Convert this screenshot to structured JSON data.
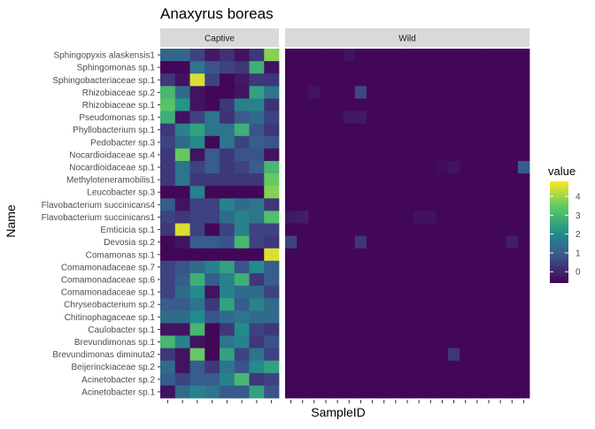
{
  "chart_data": {
    "type": "heatmap",
    "title": "Anaxyrus boreas",
    "xlabel": "SampleID",
    "ylabel": "Name",
    "facets": [
      {
        "label": "Captive",
        "n_samples": 8
      },
      {
        "label": "Wild",
        "n_samples": 21
      }
    ],
    "rows": [
      "Sphingopyxis alaskensis1",
      "Sphingomonas sp.1",
      "Sphingobacteriaceae sp.1",
      "Rhizobiaceae sp.2",
      "Rhizobiaceae sp.1",
      "Pseudomonas sp.1",
      "Phyllobacterium sp.1",
      "Pedobacter sp.3",
      "Nocardioidaceae sp.4",
      "Nocardioidaceae sp.1",
      "Methyloteneramobilis1",
      "Leucobacter sp.3",
      "Flavobacterium succinicans4",
      "Flavobacterium succinicans1",
      "Emticicia sp.1",
      "Devosia sp.2",
      "Comamonas sp.1",
      "Comamonadaceae sp.7",
      "Comamonadaceae sp.6",
      "Comamonadaceae sp.1",
      "Chryseobacterium sp.2",
      "Chitinophagaceae sp.1",
      "Caulobacter sp.1",
      "Brevundimonas sp.1",
      "Brevundimonas diminuta2",
      "Beijerinckiaceae sp.2",
      "Acinetobacter sp.2",
      "Acinetobacter sp.1"
    ],
    "captive_values": [
      [
        1.2,
        1.2,
        0.5,
        -0.2,
        0.2,
        -0.3,
        0.3,
        3.8
      ],
      [
        -0.5,
        -0.5,
        1.5,
        0.8,
        0.5,
        0.3,
        2.8,
        -0.3
      ],
      [
        0.3,
        -0.3,
        4.5,
        0.5,
        -0.5,
        -0.2,
        0.3,
        0.3
      ],
      [
        3.0,
        1.3,
        -0.3,
        -0.5,
        -0.5,
        -0.3,
        2.5,
        1.5
      ],
      [
        3.3,
        2.2,
        -0.3,
        -0.5,
        0.3,
        1.8,
        1.8,
        0.2
      ],
      [
        2.8,
        -0.3,
        0.5,
        1.5,
        0.2,
        1.0,
        1.3,
        0.5
      ],
      [
        0.3,
        1.8,
        2.5,
        1.5,
        1.5,
        2.8,
        0.8,
        0.3
      ],
      [
        0.5,
        1.3,
        2.0,
        -0.5,
        1.5,
        0.5,
        1.0,
        0.8
      ],
      [
        0.3,
        3.5,
        -0.3,
        1.0,
        0.3,
        0.8,
        0.8,
        -0.3
      ],
      [
        0.3,
        1.5,
        0.5,
        1.0,
        0.3,
        0.5,
        1.0,
        3.0
      ],
      [
        0.3,
        1.5,
        0.3,
        0.3,
        0.3,
        0.3,
        0.3,
        3.5
      ],
      [
        -0.5,
        -0.5,
        1.8,
        -0.5,
        -0.5,
        -0.5,
        -0.5,
        3.8
      ],
      [
        1.0,
        -0.3,
        0.5,
        0.5,
        1.8,
        1.3,
        1.5,
        0.3
      ],
      [
        0.5,
        0.3,
        0.5,
        0.5,
        1.3,
        1.8,
        1.5,
        3.2
      ],
      [
        0.3,
        4.5,
        0.5,
        -0.5,
        0.5,
        1.8,
        0.5,
        0.5
      ],
      [
        -0.5,
        -0.3,
        1.0,
        1.0,
        0.8,
        3.0,
        0.5,
        0.3
      ],
      [
        -0.5,
        -0.5,
        -0.5,
        -0.5,
        -0.5,
        -0.5,
        -0.5,
        4.5
      ],
      [
        0.5,
        0.8,
        1.3,
        1.8,
        2.5,
        0.8,
        2.0,
        1.0
      ],
      [
        0.5,
        1.0,
        2.8,
        1.0,
        1.8,
        2.8,
        0.3,
        1.0
      ],
      [
        0.5,
        1.3,
        2.0,
        -0.3,
        1.8,
        1.3,
        1.3,
        0.5
      ],
      [
        1.0,
        1.0,
        1.5,
        0.3,
        2.5,
        1.0,
        1.8,
        1.3
      ],
      [
        1.3,
        1.3,
        2.0,
        0.8,
        1.3,
        1.5,
        1.3,
        1.3
      ],
      [
        -0.3,
        -0.3,
        3.0,
        -0.5,
        0.3,
        2.0,
        0.5,
        0.3
      ],
      [
        3.0,
        1.8,
        -0.3,
        -0.5,
        1.5,
        1.8,
        0.3,
        0.8
      ],
      [
        0.3,
        -0.3,
        3.5,
        -0.5,
        2.5,
        0.5,
        1.5,
        0.5
      ],
      [
        1.3,
        -0.3,
        1.0,
        0.3,
        1.5,
        0.8,
        2.0,
        2.5
      ],
      [
        1.0,
        0.5,
        1.0,
        1.0,
        1.8,
        3.0,
        0.3,
        0.5
      ],
      [
        -0.3,
        1.3,
        1.8,
        1.5,
        1.0,
        1.0,
        2.5,
        0.8
      ]
    ],
    "wild_baseline": -0.5,
    "wild_highlights": [
      {
        "row": 0,
        "col": 5,
        "value": -0.3
      },
      {
        "row": 3,
        "col": 6,
        "value": 0.6
      },
      {
        "row": 3,
        "col": 2,
        "value": -0.3
      },
      {
        "row": 5,
        "col": 5,
        "value": -0.2
      },
      {
        "row": 5,
        "col": 6,
        "value": -0.2
      },
      {
        "row": 9,
        "col": 20,
        "value": 1.0
      },
      {
        "row": 9,
        "col": 14,
        "value": -0.3
      },
      {
        "row": 9,
        "col": 13,
        "value": -0.4
      },
      {
        "row": 13,
        "col": 0,
        "value": -0.2
      },
      {
        "row": 13,
        "col": 1,
        "value": -0.1
      },
      {
        "row": 13,
        "col": 11,
        "value": -0.3
      },
      {
        "row": 13,
        "col": 12,
        "value": -0.3
      },
      {
        "row": 15,
        "col": 0,
        "value": 0.5
      },
      {
        "row": 15,
        "col": 6,
        "value": 0.3
      },
      {
        "row": 15,
        "col": 19,
        "value": -0.1
      },
      {
        "row": 24,
        "col": 14,
        "value": 0.3
      }
    ],
    "legend": {
      "title": "value",
      "ticks": [
        4,
        3,
        2,
        1,
        0
      ],
      "range": [
        -0.6,
        4.8
      ],
      "placement": "right"
    },
    "colormap": [
      "#440154",
      "#3b528b",
      "#21908c",
      "#5dc963",
      "#fde725"
    ]
  }
}
